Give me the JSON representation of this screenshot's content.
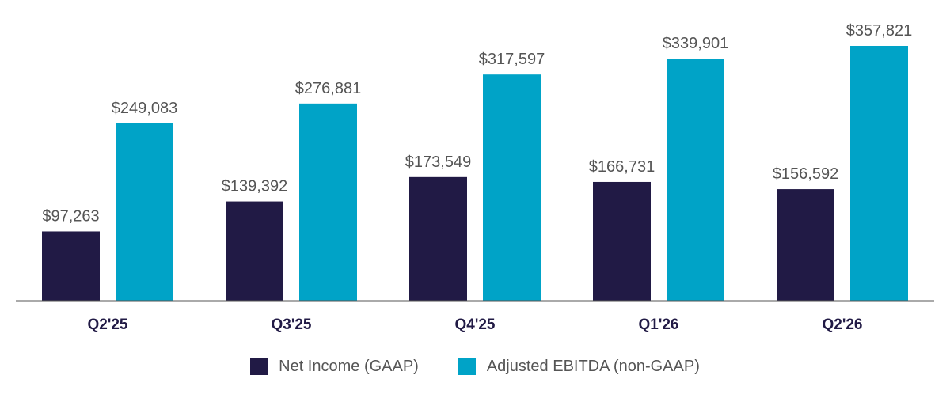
{
  "chart_data": {
    "type": "bar",
    "categories": [
      "Q2'25",
      "Q3'25",
      "Q4'25",
      "Q1'26",
      "Q2'26"
    ],
    "series": [
      {
        "name": "Net Income (GAAP)",
        "color": "#211a45",
        "values": [
          97263,
          139392,
          173549,
          166731,
          156592
        ],
        "labels": [
          "$97,263",
          "$139,392",
          "$173,549",
          "$166,731",
          "$156,592"
        ]
      },
      {
        "name": "Adjusted EBITDA (non-GAAP)",
        "color": "#00a3c7",
        "values": [
          249083,
          276881,
          317597,
          339901,
          357821
        ],
        "labels": [
          "$249,083",
          "$276,881",
          "$317,597",
          "$339,901",
          "$357,821"
        ]
      }
    ],
    "ylim": [
      0,
      357821
    ],
    "grid": false,
    "legend_position": "bottom-center",
    "axis_color": "#555555"
  }
}
